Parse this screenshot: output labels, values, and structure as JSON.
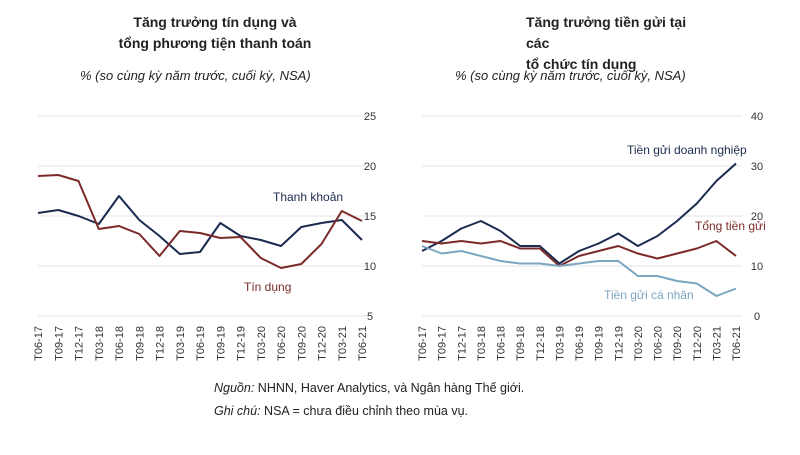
{
  "footer": {
    "source_label": "Nguồn:",
    "source_text": "NHNN, Haver Analytics, và Ngân hàng Thế giới.",
    "note_label": "Ghi chú:",
    "note_text": "NSA = chưa điều chỉnh theo mùa vụ."
  },
  "colors": {
    "navy": "#1b2b4f",
    "maroon": "#7b2a2a",
    "lightblue": "#7aa6c2",
    "grid": "#e3e3e3"
  },
  "chart_data": [
    {
      "type": "line",
      "title_line1": "Tăng trưởng tín dụng và",
      "title_line2": "tổng phương tiện thanh toán",
      "subtitle": "% (so cùng kỳ năm trước, cuối kỳ, NSA)",
      "x": [
        "T06-17",
        "T09-17",
        "T12-17",
        "T03-18",
        "T06-18",
        "T09-18",
        "T12-18",
        "T03-19",
        "T06-19",
        "T09-19",
        "T12-19",
        "T03-20",
        "T06-20",
        "T09-20",
        "T12-20",
        "T03-21",
        "T06-21"
      ],
      "y_axis_side": "right",
      "ylim": [
        5,
        25
      ],
      "yticks": [
        5,
        10,
        15,
        20,
        25
      ],
      "grid": true,
      "series": [
        {
          "name": "Thanh khoản",
          "color": "#1b2b4f",
          "values": [
            15.3,
            15.6,
            15.0,
            14.2,
            17.0,
            14.6,
            13.0,
            11.2,
            11.4,
            14.3,
            13.0,
            12.6,
            12.0,
            13.9,
            14.3,
            14.6,
            12.6
          ]
        },
        {
          "name": "Tín dụng",
          "color": "#7b2a2a",
          "values": [
            19.0,
            19.1,
            18.5,
            13.7,
            14.0,
            13.2,
            11.0,
            13.5,
            13.3,
            12.8,
            12.9,
            10.8,
            9.8,
            10.2,
            12.2,
            15.5,
            14.5
          ]
        }
      ],
      "annotations": [
        "Thanh khoản",
        "Tín dụng"
      ]
    },
    {
      "type": "line",
      "title_line1": "Tăng trưởng tiền gửi tại các",
      "title_line2": "tổ chức tín dụng",
      "subtitle": "% (so cùng kỳ năm trước, cuối kỳ, NSA)",
      "x": [
        "T06-17",
        "T09-17",
        "T12-17",
        "T03-18",
        "T06-18",
        "T09-18",
        "T12-18",
        "T03-19",
        "T06-19",
        "T09-19",
        "T12-19",
        "T03-20",
        "T06-20",
        "T09-20",
        "T12-20",
        "T03-21",
        "T06-21"
      ],
      "y_axis_side": "right",
      "ylim": [
        0,
        40
      ],
      "yticks": [
        0,
        10,
        20,
        30,
        40
      ],
      "grid": true,
      "series": [
        {
          "name": "Tiền gửi doanh nghiệp",
          "color": "#1b2b4f",
          "values": [
            13.0,
            15.0,
            17.5,
            19.0,
            17.0,
            14.0,
            14.0,
            10.5,
            13.0,
            14.5,
            16.5,
            14.0,
            16.0,
            19.0,
            22.5,
            27.0,
            30.5
          ]
        },
        {
          "name": "Tổng tiền gửi",
          "color": "#7b2a2a",
          "values": [
            15.0,
            14.5,
            15.0,
            14.5,
            15.0,
            13.5,
            13.5,
            10.0,
            12.0,
            13.0,
            14.0,
            12.5,
            11.5,
            12.5,
            13.5,
            15.0,
            12.0
          ]
        },
        {
          "name": "Tiền gửi cá nhân",
          "color": "#7aa6c2",
          "values": [
            14.0,
            12.5,
            13.0,
            12.0,
            11.0,
            10.5,
            10.5,
            10.0,
            10.5,
            11.0,
            11.0,
            8.0,
            8.0,
            7.0,
            6.5,
            4.0,
            5.5
          ]
        }
      ],
      "annotations": [
        "Tiền gửi doanh nghiệp",
        "Tổng tiền gửi",
        "Tiền gửi cá nhân"
      ]
    }
  ]
}
